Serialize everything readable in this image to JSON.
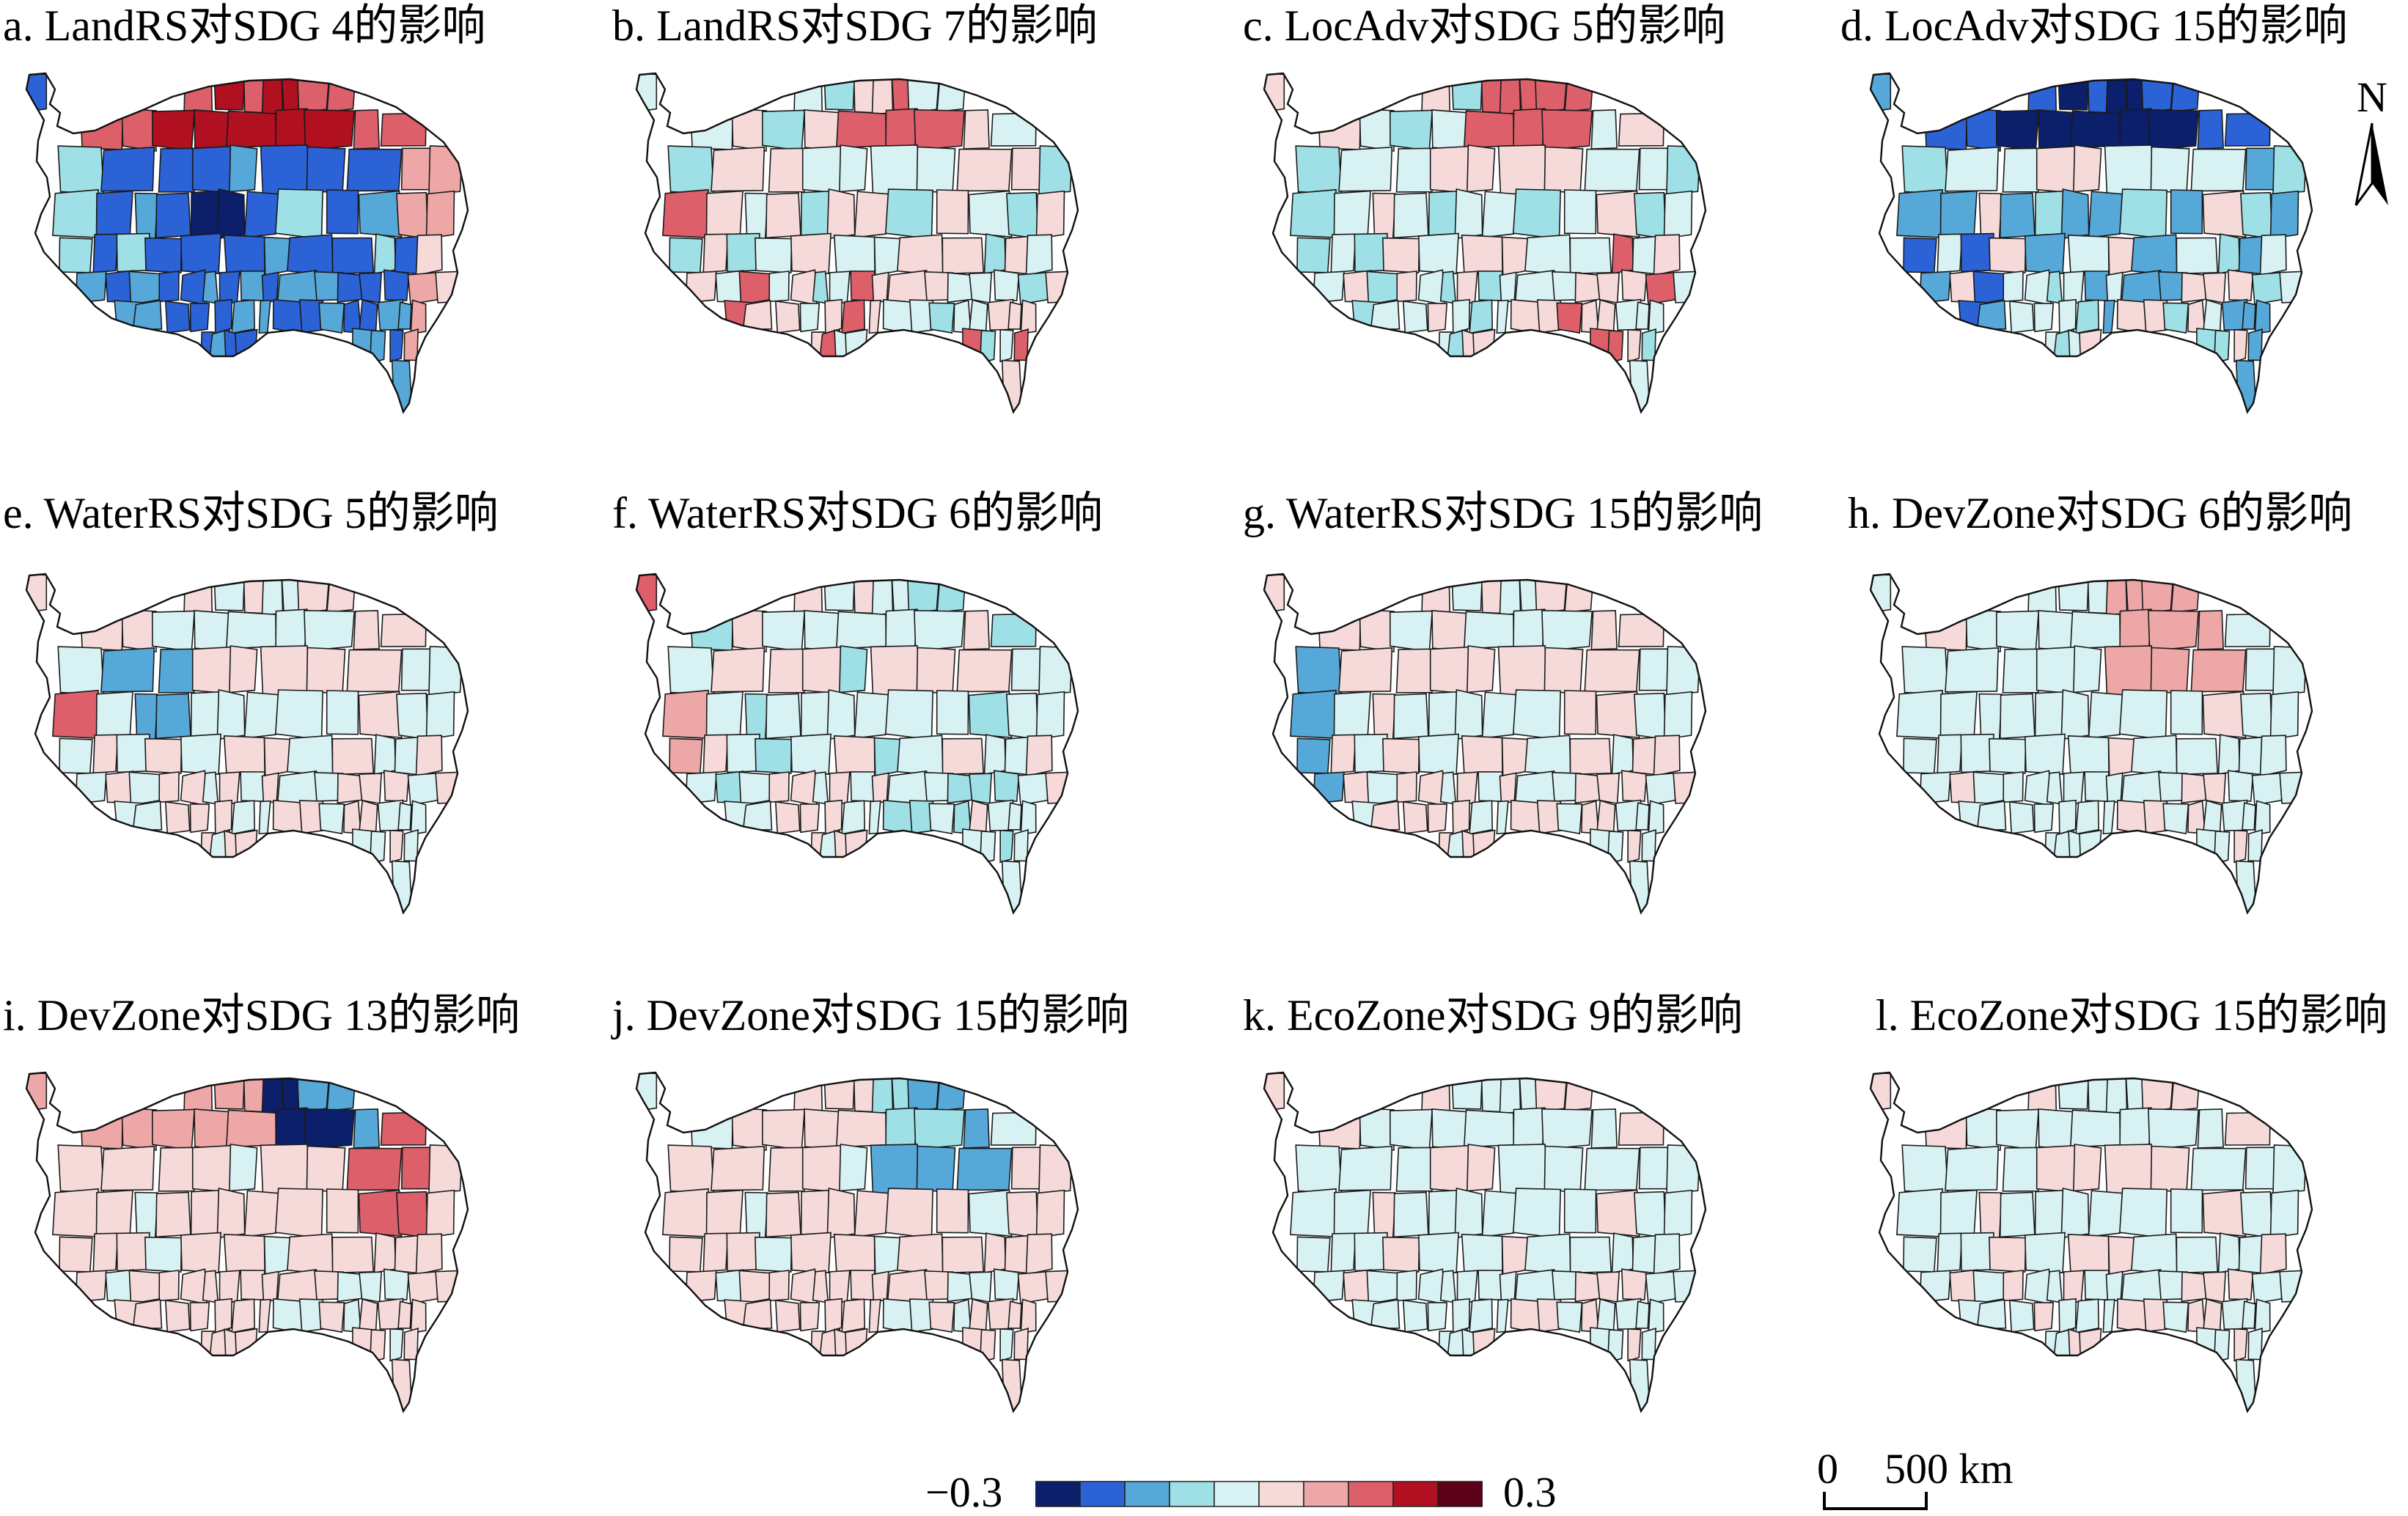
{
  "panels": [
    {
      "id": "a",
      "title": "a. LandRS对SDG 4的影响",
      "pattern": "a"
    },
    {
      "id": "b",
      "title": "b. LandRS对SDG 7的影响",
      "pattern": "b"
    },
    {
      "id": "c",
      "title": "c. LocAdv对SDG 5的影响",
      "pattern": "c"
    },
    {
      "id": "d",
      "title": "d. LocAdv对SDG 15的影响",
      "pattern": "d"
    },
    {
      "id": "e",
      "title": "e. WaterRS对SDG 5的影响",
      "pattern": "e"
    },
    {
      "id": "f",
      "title": "f. WaterRS对SDG 6的影响",
      "pattern": "f"
    },
    {
      "id": "g",
      "title": "g. WaterRS对SDG 15的影响",
      "pattern": "g"
    },
    {
      "id": "h",
      "title": "h. DevZone对SDG 6的影响",
      "pattern": "h"
    },
    {
      "id": "i",
      "title": "i. DevZone对SDG 13的影响",
      "pattern": "i"
    },
    {
      "id": "j",
      "title": "j. DevZone对SDG 15的影响",
      "pattern": "j"
    },
    {
      "id": "k",
      "title": "k. EcoZone对SDG 9的影响",
      "pattern": "k"
    },
    {
      "id": "l",
      "title": "l. EcoZone对SDG 15的影响",
      "pattern": "l"
    }
  ],
  "legend": {
    "min_label": "−0.3",
    "max_label": "0.3",
    "colors": [
      "#0b1f6b",
      "#2b62d6",
      "#56a8d8",
      "#9fe0e6",
      "#d8f2f4",
      "#f6dada",
      "#eea7a7",
      "#dc5f6a",
      "#b01020",
      "#5a0018"
    ]
  },
  "north_arrow": {
    "label": "N"
  },
  "scale_bar": {
    "start_label": "0",
    "end_label": "500 km"
  }
}
